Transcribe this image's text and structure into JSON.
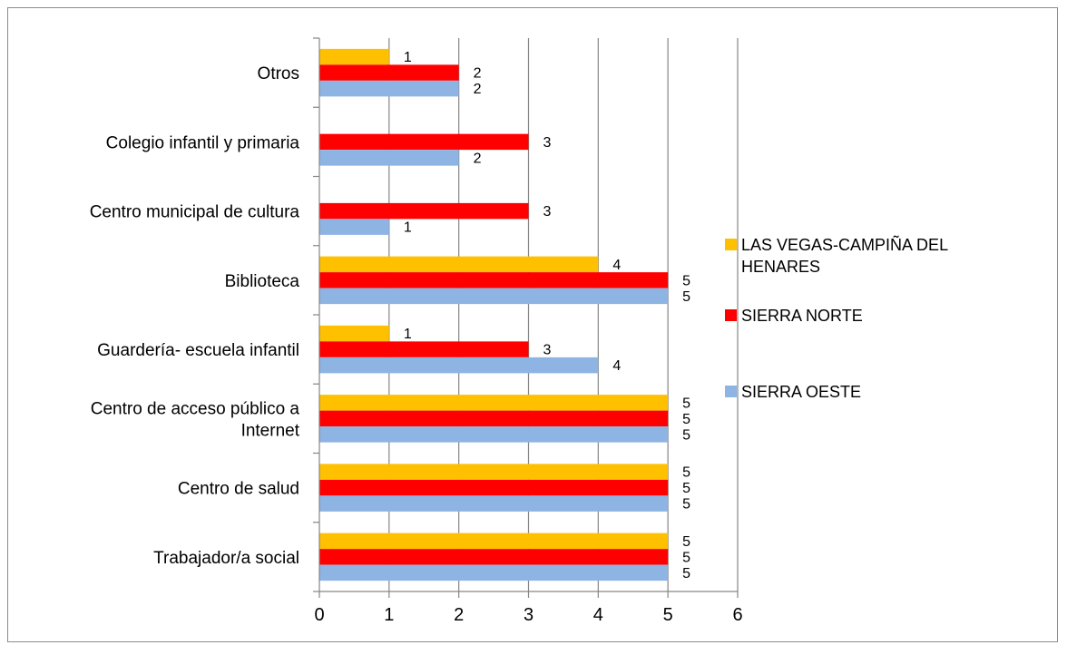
{
  "chart_data": {
    "type": "bar",
    "orientation": "horizontal",
    "categories": [
      [
        "Trabajador/a social"
      ],
      [
        "Centro de salud"
      ],
      [
        "Centro de acceso público  a",
        "Internet"
      ],
      [
        "Guardería- escuela infantil"
      ],
      [
        "Biblioteca"
      ],
      [
        "Centro municipal de cultura"
      ],
      [
        "Colegio infantil y primaria"
      ],
      [
        "Otros"
      ]
    ],
    "series": [
      {
        "name": "LAS VEGAS-CAMPIÑA DEL HENARES",
        "legend_lines": [
          "LAS VEGAS-CAMPIÑA DEL",
          "HENARES"
        ],
        "color": "#FFC000",
        "values": [
          5,
          5,
          5,
          1,
          4,
          0,
          0,
          1
        ]
      },
      {
        "name": "SIERRA NORTE",
        "legend_lines": [
          "SIERRA NORTE"
        ],
        "color": "#FF0000",
        "values": [
          5,
          5,
          5,
          3,
          5,
          3,
          3,
          2
        ]
      },
      {
        "name": "SIERRA OESTE",
        "legend_lines": [
          "SIERRA OESTE"
        ],
        "color": "#8EB4E3",
        "values": [
          5,
          5,
          5,
          4,
          5,
          1,
          2,
          2
        ]
      }
    ],
    "xlim": [
      0,
      6
    ],
    "xticks": [
      0,
      1,
      2,
      3,
      4,
      5,
      6
    ],
    "grid": "vertical",
    "legend_position": "right",
    "title": "",
    "xlabel": "",
    "ylabel": ""
  }
}
